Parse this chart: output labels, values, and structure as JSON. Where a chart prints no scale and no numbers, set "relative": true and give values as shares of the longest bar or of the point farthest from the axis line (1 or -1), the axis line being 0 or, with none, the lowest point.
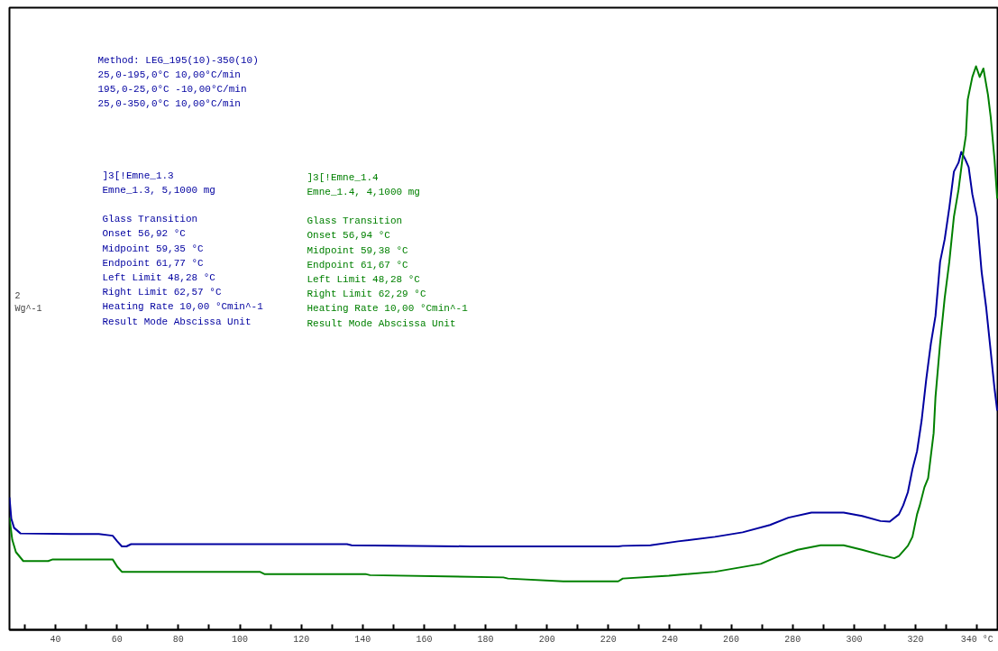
{
  "chart_data": {
    "type": "line",
    "relative": true,
    "ylabel": "2 Wg^-1",
    "xlim": [
      25,
      347
    ],
    "xticks": [
      40,
      60,
      80,
      100,
      120,
      140,
      160,
      180,
      200,
      220,
      240,
      260,
      280,
      300,
      320,
      {
        "value": 340,
        "label": "340 °C"
      }
    ],
    "grid": false,
    "marker": "none",
    "line_style": "solid",
    "annotations": [
      "Method: LEG_195(10)-350(10)\n  25,0-195,0°C 10,00°C/min\n  195,0-25,0°C -10,00°C/min\n  25,0-350,0°C 10,00°C/min",
      "]3[!Emne_1.3\nEmne_1.3, 5,1000 mg\n\nGlass Transition\nOnset    56,92 °C\nMidpoint 59,35 °C\nEndpoint      61,77 °C\nLeft Limit    48,28 °C\nRight Limit   62,57 °C\nHeating Rate  10,00 °Cmin^-1\nResult Mode  Abscissa Unit",
      "]3[!Emne_1.4\nEmne_1.4, 4,1000 mg\n\nGlass Transition\nOnset    56,94 °C\nMidpoint 59,38 °C\nEndpoint      61,67 °C\nLeft Limit    48,28 °C\nRight Limit   62,29 °C\nHeating Rate  10,00 °Cmin^-1\nResult Mode  Abscissa Unit"
    ],
    "series": [
      {
        "color": "#0000a0",
        "x": [
          25.0,
          25.6,
          26.5,
          28.6,
          45.1,
          54.1,
          58.6,
          60.1,
          61.6,
          63.1,
          64.6,
          134.9,
          136.4,
          175.3,
          223.2,
          224.7,
          233.7,
          242.7,
          254.7,
          263.7,
          272.6,
          278.6,
          286.1,
          296.6,
          302.6,
          308.6,
          311.6,
          314.6,
          316.0,
          317.5,
          319.0,
          320.5,
          322.0,
          323.5,
          325.0,
          326.5,
          328.0,
          329.5,
          331.0,
          332.5,
          334.0,
          334.9,
          336.1,
          337.3,
          338.5,
          340.0,
          341.5,
          343.0,
          344.5,
          345.7,
          346.6
        ],
        "values": [
          0.235,
          0.197,
          0.181,
          0.171,
          0.17,
          0.17,
          0.167,
          0.157,
          0.148,
          0.148,
          0.152,
          0.152,
          0.15,
          0.148,
          0.148,
          0.149,
          0.15,
          0.157,
          0.165,
          0.173,
          0.186,
          0.199,
          0.208,
          0.208,
          0.202,
          0.193,
          0.192,
          0.205,
          0.221,
          0.244,
          0.285,
          0.317,
          0.372,
          0.445,
          0.508,
          0.557,
          0.653,
          0.693,
          0.749,
          0.813,
          0.829,
          0.848,
          0.836,
          0.821,
          0.773,
          0.733,
          0.636,
          0.572,
          0.493,
          0.429,
          0.389
        ]
      },
      {
        "color": "#008000",
        "x": [
          25.0,
          25.9,
          27.1,
          29.5,
          37.6,
          39.1,
          58.6,
          60.1,
          61.6,
          64.6,
          106.5,
          108.0,
          140.9,
          142.4,
          185.8,
          187.3,
          205.3,
          223.2,
          224.7,
          239.7,
          254.7,
          269.6,
          275.6,
          281.6,
          289.1,
          296.6,
          302.6,
          308.6,
          313.1,
          314.6,
          317.5,
          319.0,
          320.5,
          321.4,
          322.9,
          324.1,
          325.9,
          326.5,
          328.0,
          329.5,
          331.0,
          332.5,
          334.0,
          335.5,
          336.4,
          337.0,
          338.5,
          339.7,
          340.9,
          342.1,
          343.6,
          344.5,
          345.7,
          346.6
        ],
        "values": [
          0.199,
          0.16,
          0.138,
          0.122,
          0.122,
          0.125,
          0.125,
          0.112,
          0.103,
          0.103,
          0.103,
          0.099,
          0.099,
          0.097,
          0.093,
          0.091,
          0.086,
          0.086,
          0.091,
          0.096,
          0.103,
          0.117,
          0.131,
          0.142,
          0.15,
          0.15,
          0.142,
          0.133,
          0.127,
          0.131,
          0.149,
          0.165,
          0.205,
          0.221,
          0.253,
          0.269,
          0.349,
          0.413,
          0.508,
          0.589,
          0.653,
          0.733,
          0.781,
          0.845,
          0.877,
          0.941,
          0.981,
          1.0,
          0.981,
          0.996,
          0.949,
          0.909,
          0.836,
          0.765
        ]
      }
    ]
  }
}
